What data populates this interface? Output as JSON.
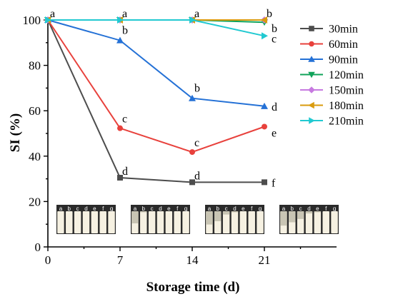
{
  "chart_data": {
    "type": "line",
    "xlabel": "Storage time (d)",
    "ylabel": "SI (%)",
    "xlim": [
      0,
      28
    ],
    "ylim": [
      0,
      100
    ],
    "x": [
      0,
      7,
      14,
      21
    ],
    "xticks": [
      "0",
      "7",
      "14",
      "21"
    ],
    "yticks": [
      "0",
      "20",
      "40",
      "60",
      "80",
      "100"
    ],
    "series": [
      {
        "name": "30min",
        "color": "#4d4d4d",
        "marker": "square",
        "values": [
          100,
          30.5,
          28.5,
          28.5
        ],
        "labels": [
          "a",
          "d",
          "d",
          "f"
        ]
      },
      {
        "name": "60min",
        "color": "#e8413c",
        "marker": "circle",
        "values": [
          100,
          52.3,
          41.8,
          53
        ],
        "labels": [
          "a",
          "c",
          "c",
          "e"
        ]
      },
      {
        "name": "90min",
        "color": "#2471d6",
        "marker": "triangle-up",
        "values": [
          100,
          91,
          65.5,
          62
        ],
        "labels": [
          "a",
          "b",
          "b",
          "d"
        ]
      },
      {
        "name": "120min",
        "color": "#10a35a",
        "marker": "triangle-down",
        "values": [
          100,
          100,
          100,
          99
        ],
        "labels": [
          "a",
          "a",
          "a",
          "b"
        ]
      },
      {
        "name": "150min",
        "color": "#c77ae0",
        "marker": "diamond",
        "values": [
          100,
          100,
          100,
          100
        ],
        "labels": [
          "a",
          "a",
          "a",
          "a"
        ]
      },
      {
        "name": "180min",
        "color": "#d99b0e",
        "marker": "triangle-left",
        "values": [
          100,
          100,
          100,
          100
        ],
        "labels": [
          "a",
          "a",
          "a",
          "a"
        ]
      },
      {
        "name": "210min",
        "color": "#21c9d1",
        "marker": "triangle-right",
        "values": [
          100,
          100,
          100,
          93
        ],
        "labels": [
          "a",
          "a",
          "a",
          "c"
        ]
      }
    ],
    "photo_insets": {
      "count": 4,
      "vial_letters": [
        "a",
        "b",
        "c",
        "d",
        "e",
        "f",
        "g"
      ]
    },
    "legend": "right"
  }
}
